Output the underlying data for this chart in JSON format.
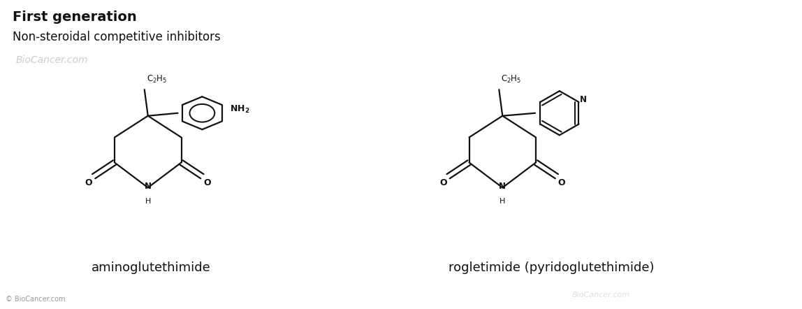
{
  "title_bold": "First generation",
  "title_normal": "Non-steroidal competitive inhibitors",
  "copyright": "© BioCancer.com",
  "watermark1": "BioCancer.com",
  "watermark2": "BioCancer.com",
  "compound1_name": "aminoglutethimide",
  "compound2_name": "rogletimide (pyridoglutethimide)",
  "bg_color": "#ffffff",
  "text_color": "#111111",
  "line_color": "#111111",
  "lw": 1.6,
  "c1x": 2.1,
  "c1y": 2.25,
  "c2x": 7.2,
  "c2y": 2.25
}
